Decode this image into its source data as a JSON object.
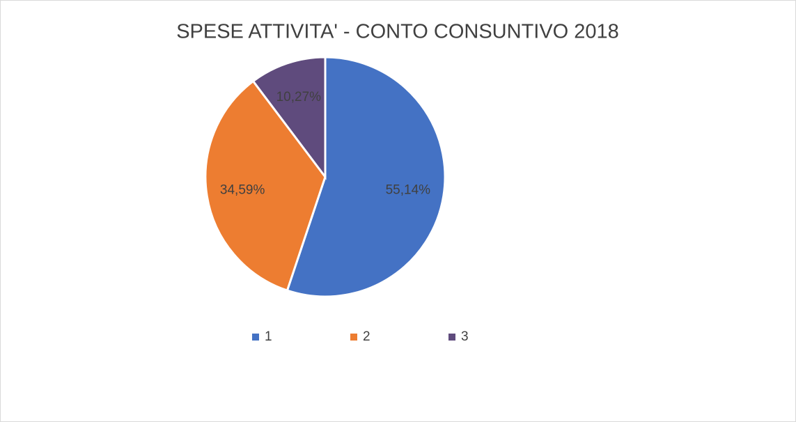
{
  "chart_data": {
    "type": "pie",
    "title": "SPESE ATTIVITA' - CONTO CONSUNTIVO 2018",
    "categories": [
      "1",
      "2",
      "3"
    ],
    "values": [
      55.14,
      34.59,
      10.27
    ],
    "value_labels": [
      "55,14%",
      "34,59%",
      "10,27%"
    ],
    "colors": [
      "#4472c4",
      "#ed7d31",
      "#5f4b7d"
    ],
    "legend": "bottom"
  }
}
